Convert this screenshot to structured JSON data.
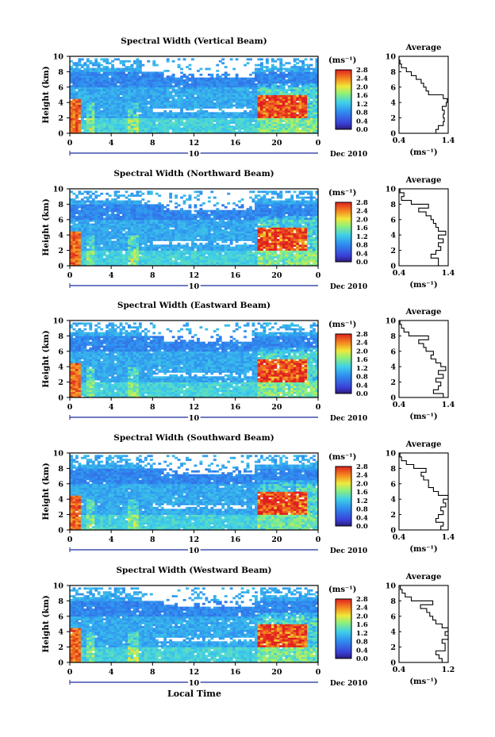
{
  "figure": {
    "shared_xlabel": "Local Time",
    "date_label": "Dec 2010",
    "day_label": "10"
  },
  "chart_data": [
    {
      "type": "heatmap",
      "title": "Spectral Width (Vertical Beam)",
      "xlabel": "",
      "ylabel": "Height (km)",
      "xlim": [
        0,
        24
      ],
      "ylim": [
        0,
        10
      ],
      "xticks": [
        "0",
        "4",
        "8",
        "12",
        "16",
        "20",
        "0"
      ],
      "yticks": [
        "0",
        "2",
        "4",
        "6",
        "8",
        "10"
      ],
      "colorbar": {
        "unit": "(ms⁻¹)",
        "ticks": [
          "0.0",
          "0.4",
          "0.8",
          "1.2",
          "1.6",
          "2.0",
          "2.4",
          "2.8"
        ],
        "range": [
          0,
          2.8
        ]
      },
      "profile": {
        "title": "Average",
        "xlabel": "(ms⁻¹)",
        "xlim": [
          0.4,
          1.4
        ],
        "xticks": [
          "0.4",
          "1.4"
        ],
        "yticks": [
          "0",
          "2",
          "4",
          "6",
          "8",
          "10"
        ],
        "height": [
          0,
          0.5,
          1,
          1.5,
          2,
          2.5,
          3,
          3.5,
          4,
          4.5,
          5,
          5.5,
          6,
          6.5,
          7,
          7.5,
          8,
          8.5,
          9,
          9.5
        ],
        "value": [
          1.15,
          1.2,
          1.3,
          1.32,
          1.3,
          1.32,
          1.28,
          1.36,
          1.38,
          1.3,
          1.0,
          0.95,
          0.9,
          0.85,
          0.75,
          0.65,
          0.55,
          0.45,
          0.42,
          0.4
        ]
      }
    },
    {
      "type": "heatmap",
      "title": "Spectral Width (Northward Beam)",
      "xlabel": "",
      "ylabel": "Height (km)",
      "xlim": [
        0,
        24
      ],
      "ylim": [
        0,
        10
      ],
      "xticks": [
        "0",
        "4",
        "8",
        "12",
        "16",
        "20",
        "0"
      ],
      "yticks": [
        "0",
        "2",
        "4",
        "6",
        "8",
        "10"
      ],
      "colorbar": {
        "unit": "(ms⁻¹)",
        "ticks": [
          "0.0",
          "0.4",
          "0.8",
          "1.2",
          "1.6",
          "2.0",
          "2.4",
          "2.8"
        ],
        "range": [
          0,
          2.8
        ]
      },
      "profile": {
        "title": "Average",
        "xlabel": "(ms⁻¹)",
        "xlim": [
          0.4,
          1.4
        ],
        "xticks": [
          "0.4",
          "1.4"
        ],
        "yticks": [
          "0",
          "2",
          "4",
          "6",
          "8",
          "10"
        ],
        "height": [
          0,
          0.5,
          1,
          1.5,
          2,
          2.5,
          3,
          3.5,
          4,
          4.5,
          5,
          5.5,
          6,
          6.5,
          7,
          7.5,
          8,
          8.5,
          9,
          9.5
        ],
        "value": [
          1.2,
          1.2,
          1.05,
          1.15,
          1.25,
          1.2,
          1.3,
          1.2,
          1.35,
          1.2,
          1.15,
          1.1,
          1.05,
          0.95,
          0.8,
          1.0,
          0.65,
          0.45,
          0.5,
          0.42
        ]
      }
    },
    {
      "type": "heatmap",
      "title": "Spectral Width (Eastward Beam)",
      "xlabel": "",
      "ylabel": "Height (km)",
      "xlim": [
        0,
        24
      ],
      "ylim": [
        0,
        10
      ],
      "xticks": [
        "0",
        "4",
        "8",
        "12",
        "16",
        "20",
        "0"
      ],
      "yticks": [
        "0",
        "2",
        "4",
        "6",
        "8",
        "10"
      ],
      "colorbar": {
        "unit": "(ms⁻¹)",
        "ticks": [
          "0.0",
          "0.4",
          "0.8",
          "1.2",
          "1.6",
          "2.0",
          "2.4",
          "2.8"
        ],
        "range": [
          0,
          2.8
        ]
      },
      "profile": {
        "title": "Average",
        "xlabel": "(ms⁻¹)",
        "xlim": [
          0.4,
          1.4
        ],
        "xticks": [
          "0.4",
          "1.4"
        ],
        "yticks": [
          "0",
          "2",
          "4",
          "6",
          "8",
          "10"
        ],
        "height": [
          0,
          0.5,
          1,
          1.5,
          2,
          2.5,
          3,
          3.5,
          4,
          4.5,
          5,
          5.5,
          6,
          6.5,
          7,
          7.5,
          8,
          8.5,
          9,
          9.5
        ],
        "value": [
          1.3,
          1.1,
          1.2,
          1.25,
          1.15,
          1.3,
          1.2,
          1.35,
          1.25,
          1.15,
          1.05,
          1.1,
          0.95,
          0.9,
          0.8,
          1.0,
          0.6,
          0.5,
          0.45,
          0.42
        ]
      }
    },
    {
      "type": "heatmap",
      "title": "Spectral Width (Southward Beam)",
      "xlabel": "",
      "ylabel": "Height (km)",
      "xlim": [
        0,
        24
      ],
      "ylim": [
        0,
        10
      ],
      "xticks": [
        "0",
        "4",
        "8",
        "12",
        "16",
        "20",
        "0"
      ],
      "yticks": [
        "0",
        "2",
        "4",
        "6",
        "8",
        "10"
      ],
      "colorbar": {
        "unit": "(ms⁻¹)",
        "ticks": [
          "0.0",
          "0.4",
          "0.8",
          "1.2",
          "1.6",
          "2.0",
          "2.4",
          "2.8"
        ],
        "range": [
          0,
          2.8
        ]
      },
      "profile": {
        "title": "Average",
        "xlabel": "(ms⁻¹)",
        "xlim": [
          0.4,
          1.4
        ],
        "xticks": [
          "0.4",
          "1.4"
        ],
        "yticks": [
          "0",
          "2",
          "4",
          "6",
          "8",
          "10"
        ],
        "height": [
          0,
          0.5,
          1,
          1.5,
          2,
          2.5,
          3,
          3.5,
          4,
          4.5,
          5,
          5.5,
          6,
          6.5,
          7,
          7.5,
          8,
          8.5,
          9,
          9.5
        ],
        "value": [
          1.25,
          1.3,
          1.15,
          1.2,
          1.3,
          1.25,
          1.35,
          1.3,
          1.4,
          1.2,
          1.1,
          1.0,
          1.0,
          0.9,
          0.85,
          0.95,
          0.7,
          0.55,
          0.45,
          0.42
        ]
      }
    },
    {
      "type": "heatmap",
      "title": "Spectral Width (Westward Beam)",
      "xlabel": "Local Time",
      "ylabel": "Height (km)",
      "xlim": [
        0,
        24
      ],
      "ylim": [
        0,
        10
      ],
      "xticks": [
        "0",
        "4",
        "8",
        "12",
        "16",
        "20",
        "0"
      ],
      "yticks": [
        "0",
        "2",
        "4",
        "6",
        "8",
        "10"
      ],
      "colorbar": {
        "unit": "(ms⁻¹)",
        "ticks": [
          "0.0",
          "0.4",
          "0.8",
          "1.2",
          "1.6",
          "2.0",
          "2.4",
          "2.8"
        ],
        "range": [
          0,
          2.8
        ]
      },
      "profile": {
        "title": "Average",
        "xlabel": "(ms⁻¹)",
        "xlim": [
          0.4,
          1.2
        ],
        "xticks": [
          "0.4",
          "1.2"
        ],
        "yticks": [
          "0",
          "2",
          "4",
          "6",
          "8",
          "10"
        ],
        "height": [
          0,
          0.5,
          1,
          1.5,
          2,
          2.5,
          3,
          3.5,
          4,
          4.5,
          5,
          5.5,
          6,
          6.5,
          7,
          7.5,
          8,
          8.5,
          9,
          9.5
        ],
        "value": [
          1.1,
          1.05,
          1.0,
          1.15,
          1.15,
          1.1,
          1.2,
          1.15,
          1.2,
          1.1,
          1.0,
          0.95,
          0.9,
          0.85,
          0.75,
          0.95,
          0.6,
          0.5,
          0.45,
          0.42
        ]
      }
    }
  ]
}
